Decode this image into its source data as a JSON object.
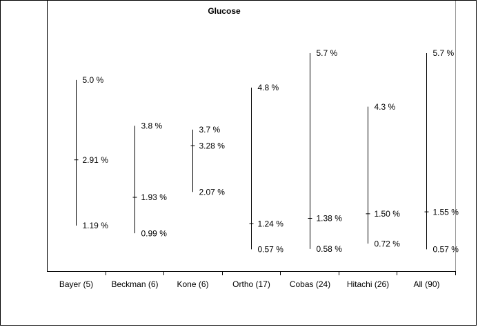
{
  "chart_data": {
    "type": "hilo",
    "title": "Glucose",
    "categories": [
      "Bayer (5)",
      "Beckman (6)",
      "Kone (6)",
      "Ortho (17)",
      "Cobas (24)",
      "Hitachi (26)",
      "All (90)"
    ],
    "series": [
      {
        "values": [
          5.0,
          3.8,
          3.7,
          4.8,
          5.7,
          4.3,
          5.7
        ],
        "value_labels": [
          "5.0 %",
          "3.8 %",
          "3.7 %",
          "4.8 %",
          "5.7 %",
          "4.3 %",
          "5.7 %"
        ]
      },
      {
        "values": [
          2.91,
          1.93,
          3.28,
          1.24,
          1.38,
          1.5,
          1.55
        ],
        "value_labels": [
          "2.91 %",
          "1.93 %",
          "3.28 %",
          "1.24 %",
          "1.38 %",
          "1.50 %",
          "1.55 %"
        ]
      },
      {
        "values": [
          1.19,
          0.99,
          2.07,
          0.57,
          0.58,
          0.72,
          0.57
        ],
        "value_labels": [
          "1.19 %",
          "0.99 %",
          "2.07 %",
          "0.57 %",
          "0.58 %",
          "0.72 %",
          "0.57 %"
        ]
      }
    ],
    "color": "#000000",
    "ylim": [
      0,
      7
    ]
  }
}
